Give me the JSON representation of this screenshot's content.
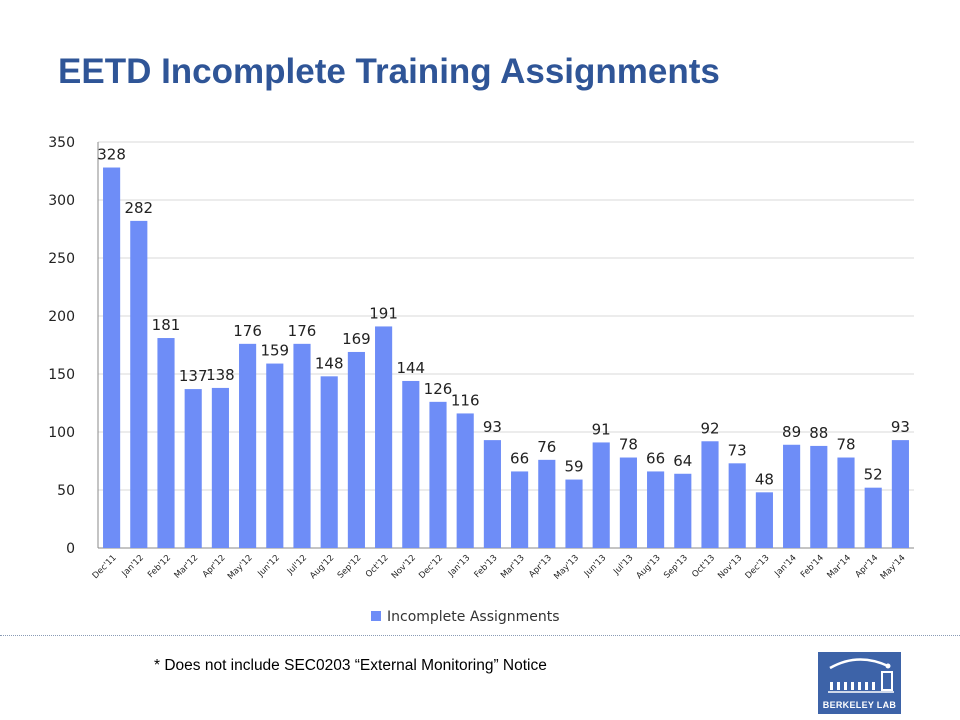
{
  "slide": {
    "title": "EETD Incomplete Training Assignments",
    "footnote": "* Does not include SEC0203 “External Monitoring” Notice",
    "logo_text": "BERKELEY LAB"
  },
  "chart_data": {
    "type": "bar",
    "categories": [
      "Dec'11",
      "Jan'12",
      "Feb'12",
      "Mar'12",
      "Apr'12",
      "May'12",
      "Jun'12",
      "Jul'12",
      "Aug'12",
      "Sep'12",
      "Oct'12",
      "Nov'12",
      "Dec'12",
      "Jan'13",
      "Feb'13",
      "Mar'13",
      "Apr'13",
      "May'13",
      "Jun'13",
      "Jul'13",
      "Aug'13",
      "Sep'13",
      "Oct'13",
      "Nov'13",
      "Dec'13",
      "Jan'14",
      "Feb'14",
      "Mar'14",
      "Apr'14",
      "May'14"
    ],
    "series": [
      {
        "name": "Incomplete Assignments",
        "values": [
          328,
          282,
          181,
          137,
          138,
          176,
          159,
          176,
          148,
          169,
          191,
          144,
          126,
          116,
          93,
          66,
          76,
          59,
          91,
          78,
          66,
          64,
          92,
          73,
          48,
          89,
          88,
          78,
          52,
          93
        ]
      }
    ],
    "ylim": [
      0,
      350
    ],
    "yticks": [
      0,
      50,
      100,
      150,
      200,
      250,
      300,
      350
    ],
    "grid": true,
    "legend_position": "bottom",
    "bar_color": "#6e8df7"
  }
}
